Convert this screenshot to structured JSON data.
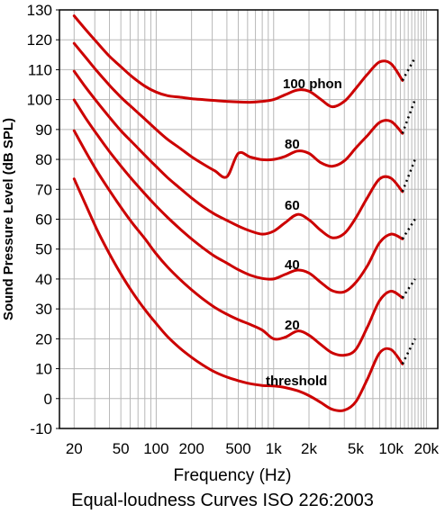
{
  "chart_data": {
    "type": "line",
    "title": "Equal-loudness Curves ISO 226:2003",
    "xlabel": "Frequency (Hz)",
    "ylabel": "Sound Pressure Level (dB SPL)",
    "x_scale": "log",
    "xlim": [
      15,
      25000
    ],
    "ylim": [
      -10,
      130
    ],
    "grid": true,
    "x_tick_values": [
      20,
      50,
      100,
      200,
      500,
      1000,
      2000,
      5000,
      10000,
      20000
    ],
    "x_tick_labels": [
      "20",
      "50",
      "100",
      "200",
      "500",
      "1k",
      "2k",
      "5k",
      "10k",
      "20k"
    ],
    "y_ticks": [
      -10,
      0,
      10,
      20,
      30,
      40,
      50,
      60,
      70,
      80,
      90,
      100,
      110,
      120,
      130
    ],
    "line_color": "#cc0000",
    "series": [
      {
        "name": "threshold",
        "x": [
          20,
          25,
          31.5,
          40,
          50,
          63,
          80,
          100,
          125,
          160,
          200,
          250,
          315,
          400,
          500,
          630,
          800,
          1000,
          1250,
          1600,
          2000,
          2500,
          3150,
          4000,
          5000,
          6300,
          8000,
          10000,
          12500
        ],
        "y": [
          73.5,
          65,
          56.3,
          48.4,
          41.7,
          35.5,
          29.8,
          25.1,
          20.7,
          16.8,
          13.8,
          11.2,
          8.9,
          7.2,
          6.0,
          5.0,
          4.4,
          4.2,
          3.7,
          2.6,
          1.0,
          -1.2,
          -3.6,
          -3.9,
          -1.1,
          6.6,
          15.3,
          16.4,
          11.6
        ],
        "dotted_x": [
          12500,
          16000
        ],
        "dotted_y": [
          11.6,
          20
        ]
      },
      {
        "name": "20",
        "x": [
          20,
          25,
          31.5,
          40,
          50,
          63,
          80,
          100,
          125,
          160,
          200,
          250,
          315,
          400,
          500,
          630,
          800,
          1000,
          1250,
          1600,
          2000,
          2500,
          3150,
          4000,
          5000,
          6300,
          8000,
          10000,
          12500
        ],
        "y": [
          89.6,
          82.7,
          75.9,
          69.6,
          64.0,
          58.6,
          53.5,
          48.4,
          44.0,
          39.8,
          36.4,
          33.3,
          30.5,
          28.2,
          26.4,
          24.8,
          22.9,
          20.0,
          20.5,
          22.6,
          21.2,
          18.2,
          15.3,
          14.5,
          16.4,
          24.0,
          32.8,
          35.9,
          33.7
        ],
        "dotted_x": [
          12500,
          16000
        ],
        "dotted_y": [
          33.7,
          40
        ]
      },
      {
        "name": "40",
        "x": [
          20,
          25,
          31.5,
          40,
          50,
          63,
          80,
          100,
          125,
          160,
          200,
          250,
          315,
          400,
          500,
          630,
          800,
          1000,
          1250,
          1600,
          2000,
          2500,
          3150,
          4000,
          5000,
          6300,
          8000,
          10000,
          12500
        ],
        "y": [
          99.9,
          93.9,
          88.2,
          82.6,
          77.8,
          73.1,
          68.5,
          64.4,
          60.6,
          56.7,
          53.4,
          50.4,
          47.6,
          45.3,
          43.1,
          41.3,
          40.2,
          40.0,
          41.5,
          43.0,
          42.0,
          39.0,
          36.1,
          35.7,
          38.8,
          44.5,
          52.2,
          55.0,
          53.4
        ],
        "dotted_x": [
          12500,
          16000
        ],
        "dotted_y": [
          53.4,
          60
        ]
      },
      {
        "name": "60",
        "x": [
          20,
          25,
          31.5,
          40,
          50,
          63,
          80,
          100,
          125,
          160,
          200,
          250,
          315,
          400,
          500,
          630,
          800,
          1000,
          1250,
          1600,
          2000,
          2500,
          3150,
          4000,
          5000,
          6300,
          8000,
          10000,
          12500
        ],
        "y": [
          109.5,
          104.2,
          99.1,
          94.1,
          89.6,
          85.6,
          81.4,
          77.6,
          73.9,
          70.3,
          67.1,
          64.2,
          61.7,
          59.6,
          57.7,
          56.1,
          55.0,
          56.0,
          58.8,
          61.6,
          59.8,
          56.4,
          53.8,
          55.2,
          60.4,
          67.3,
          73.5,
          73.7,
          69.2
        ],
        "dotted_x": [
          12500,
          16000
        ],
        "dotted_y": [
          69.2,
          80
        ]
      },
      {
        "name": "80",
        "x": [
          20,
          25,
          31.5,
          40,
          50,
          63,
          80,
          100,
          125,
          160,
          200,
          250,
          315,
          400,
          500,
          630,
          800,
          1000,
          1250,
          1600,
          2000,
          2500,
          3150,
          4000,
          5000,
          6300,
          8000,
          10000,
          12500
        ],
        "y": [
          118.8,
          114.2,
          109.4,
          104.8,
          100.8,
          97.2,
          93.5,
          90.0,
          86.7,
          83.7,
          80.9,
          78.5,
          76.2,
          74.2,
          82.0,
          80.8,
          79.9,
          80.0,
          81.0,
          82.8,
          82.0,
          79.0,
          77.7,
          79.5,
          83.8,
          88.0,
          92.4,
          92.7,
          88.7
        ],
        "dotted_x": [
          12500,
          16000
        ],
        "dotted_y": [
          88.7,
          100
        ]
      },
      {
        "name": "100 phon",
        "x": [
          20,
          25,
          31.5,
          40,
          50,
          63,
          80,
          100,
          125,
          160,
          200,
          250,
          315,
          400,
          500,
          630,
          800,
          1000,
          1250,
          1600,
          2000,
          2500,
          3150,
          4000,
          5000,
          6300,
          8000,
          10000,
          12500
        ],
        "y": [
          128,
          123.5,
          119,
          114.5,
          111,
          107.5,
          104.5,
          102.5,
          101.3,
          100.8,
          100.3,
          100,
          99.7,
          99.4,
          99.2,
          99.1,
          99.4,
          100.0,
          101.6,
          103.2,
          102.8,
          100.2,
          97.6,
          99.4,
          103.7,
          108.5,
          112.6,
          112.0,
          106.4
        ],
        "dotted_x": [
          12500,
          16000
        ],
        "dotted_y": [
          106.4,
          114
        ]
      }
    ],
    "annotations": [
      "100 phon",
      "80",
      "60",
      "40",
      "20",
      "threshold"
    ]
  }
}
